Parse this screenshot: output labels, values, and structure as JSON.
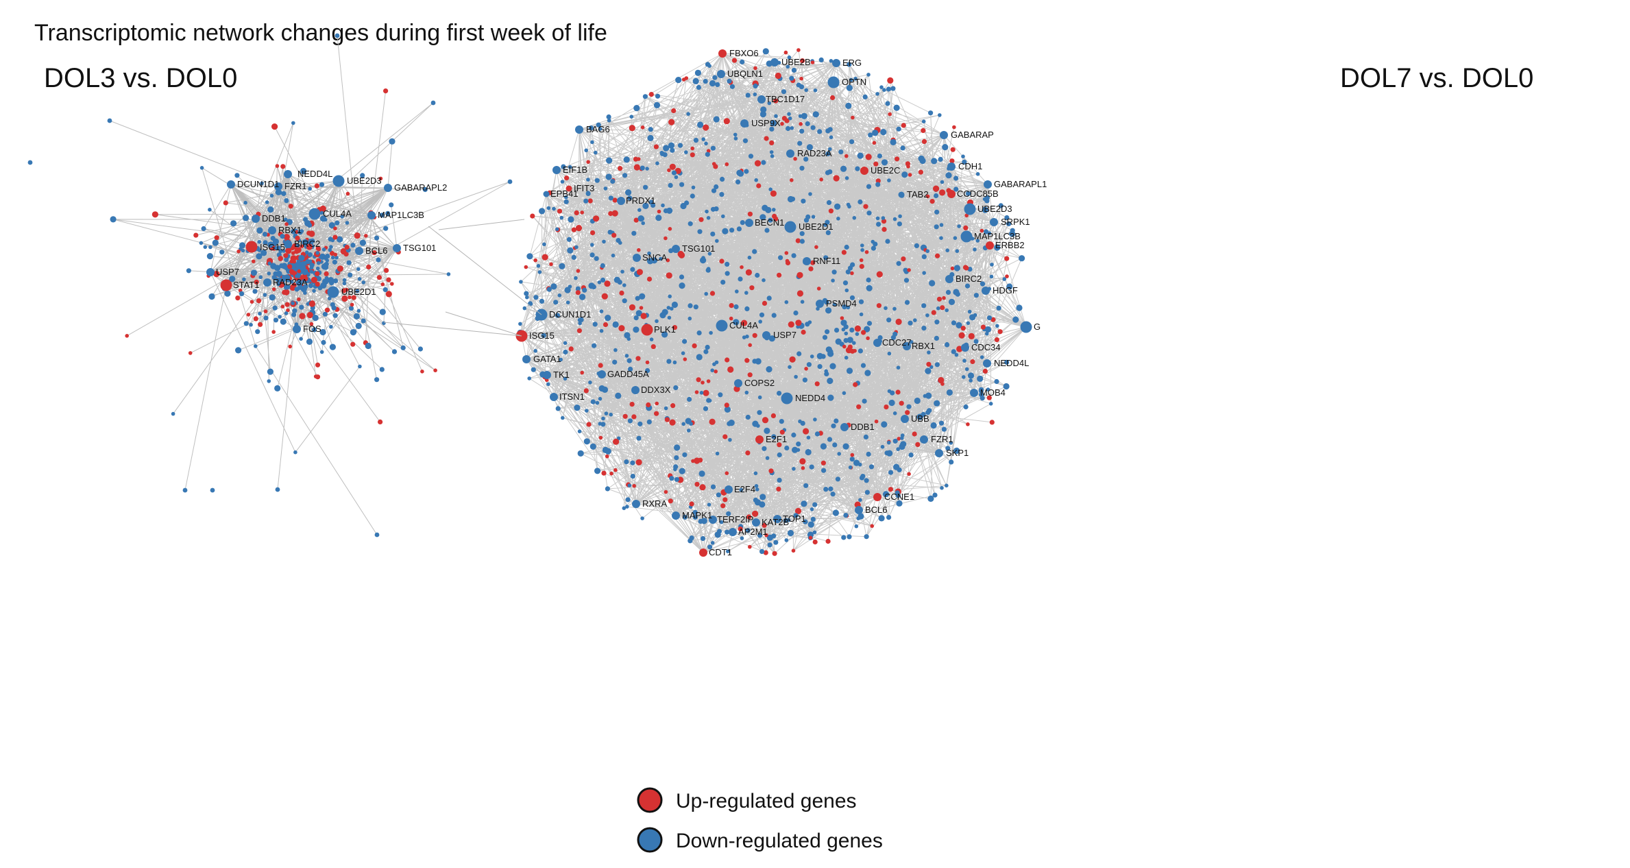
{
  "figure": {
    "title": "Transcriptomic network changes during first week of life"
  },
  "colors": {
    "up": "#d63232",
    "down": "#3878b4",
    "edge": "#b4b4b4",
    "legend_stroke": "#111111"
  },
  "legend": {
    "up_label": "Up-regulated genes",
    "down_label": "Down-regulated genes"
  },
  "networks": [
    {
      "id": "dol3",
      "title": "DOL3 vs. DOL0",
      "labeled_nodes": [
        {
          "label": "NEDD4L",
          "status": "down",
          "size": "medium"
        },
        {
          "label": "DCUN1D1",
          "status": "down",
          "size": "medium"
        },
        {
          "label": "FZR1",
          "status": "down",
          "size": "medium"
        },
        {
          "label": "UBE2D3",
          "status": "down",
          "size": "large"
        },
        {
          "label": "GABARAPL2",
          "status": "down",
          "size": "medium"
        },
        {
          "label": "CUL4A",
          "status": "down",
          "size": "large"
        },
        {
          "label": "DDB1",
          "status": "down",
          "size": "medium"
        },
        {
          "label": "MAP1LC3B",
          "status": "down",
          "size": "medium"
        },
        {
          "label": "RBX1",
          "status": "down",
          "size": "medium"
        },
        {
          "label": "ISG15",
          "status": "up",
          "size": "large"
        },
        {
          "label": "BIRC2",
          "status": "down",
          "size": "medium"
        },
        {
          "label": "BCL6",
          "status": "down",
          "size": "medium"
        },
        {
          "label": "TSG101",
          "status": "down",
          "size": "medium"
        },
        {
          "label": "USP7",
          "status": "down",
          "size": "medium"
        },
        {
          "label": "STAT1",
          "status": "up",
          "size": "large"
        },
        {
          "label": "RAD23A",
          "status": "down",
          "size": "medium"
        },
        {
          "label": "UBE2D1",
          "status": "down",
          "size": "large"
        },
        {
          "label": "FOS",
          "status": "down",
          "size": "medium"
        }
      ]
    },
    {
      "id": "dol7",
      "title": "DOL7 vs. DOL0",
      "labeled_nodes": [
        {
          "label": "FBXO6",
          "status": "up",
          "size": "medium"
        },
        {
          "label": "UBE2B",
          "status": "down",
          "size": "medium"
        },
        {
          "label": "ERG",
          "status": "down",
          "size": "medium"
        },
        {
          "label": "UBQLN1",
          "status": "down",
          "size": "medium"
        },
        {
          "label": "OPTN",
          "status": "down",
          "size": "large"
        },
        {
          "label": "TBC1D17",
          "status": "down",
          "size": "medium"
        },
        {
          "label": "USP9X",
          "status": "down",
          "size": "medium"
        },
        {
          "label": "BAG6",
          "status": "down",
          "size": "medium"
        },
        {
          "label": "GABARAP",
          "status": "down",
          "size": "medium"
        },
        {
          "label": "RAD23A",
          "status": "down",
          "size": "medium"
        },
        {
          "label": "EIF1B",
          "status": "down",
          "size": "medium"
        },
        {
          "label": "UBE2C",
          "status": "up",
          "size": "medium"
        },
        {
          "label": "CDH1",
          "status": "down",
          "size": "medium"
        },
        {
          "label": "IFIT3",
          "status": "up",
          "size": "small"
        },
        {
          "label": "GABARAPL1",
          "status": "down",
          "size": "medium"
        },
        {
          "label": "EPB41",
          "status": "down",
          "size": "small"
        },
        {
          "label": "TAB2",
          "status": "down",
          "size": "small"
        },
        {
          "label": "CCDC85B",
          "status": "up",
          "size": "medium"
        },
        {
          "label": "PRDX1",
          "status": "down",
          "size": "medium"
        },
        {
          "label": "UBE2D3",
          "status": "down",
          "size": "large"
        },
        {
          "label": "SRPK1",
          "status": "down",
          "size": "medium"
        },
        {
          "label": "BECN1",
          "status": "down",
          "size": "medium"
        },
        {
          "label": "UBE2D1",
          "status": "down",
          "size": "large"
        },
        {
          "label": "MAP1LC3B",
          "status": "down",
          "size": "large"
        },
        {
          "label": "ERBB2",
          "status": "up",
          "size": "medium"
        },
        {
          "label": "TSG101",
          "status": "down",
          "size": "medium"
        },
        {
          "label": "SNCA",
          "status": "down",
          "size": "medium"
        },
        {
          "label": "RNF11",
          "status": "down",
          "size": "medium"
        },
        {
          "label": "BIRC2",
          "status": "down",
          "size": "medium"
        },
        {
          "label": "HDGF",
          "status": "down",
          "size": "medium"
        },
        {
          "label": "PSMD4",
          "status": "down",
          "size": "medium"
        },
        {
          "label": "DCUN1D1",
          "status": "down",
          "size": "large"
        },
        {
          "label": "CUL4A",
          "status": "down",
          "size": "large"
        },
        {
          "label": "G",
          "status": "down",
          "size": "large"
        },
        {
          "label": "PLK1",
          "status": "up",
          "size": "large"
        },
        {
          "label": "ISG15",
          "status": "up",
          "size": "large"
        },
        {
          "label": "USP7",
          "status": "down",
          "size": "medium"
        },
        {
          "label": "CDC27",
          "status": "down",
          "size": "medium"
        },
        {
          "label": "RBX1",
          "status": "down",
          "size": "medium"
        },
        {
          "label": "CDC34",
          "status": "down",
          "size": "medium"
        },
        {
          "label": "GATA1",
          "status": "down",
          "size": "medium"
        },
        {
          "label": "NEDD4L",
          "status": "down",
          "size": "medium"
        },
        {
          "label": "TK1",
          "status": "down",
          "size": "medium"
        },
        {
          "label": "GADD45A",
          "status": "down",
          "size": "medium"
        },
        {
          "label": "COPS2",
          "status": "down",
          "size": "medium"
        },
        {
          "label": "DDX3X",
          "status": "down",
          "size": "medium"
        },
        {
          "label": "ITSN1",
          "status": "down",
          "size": "medium"
        },
        {
          "label": "MOB4",
          "status": "down",
          "size": "medium"
        },
        {
          "label": "NEDD4",
          "status": "down",
          "size": "large"
        },
        {
          "label": "UBB",
          "status": "down",
          "size": "medium"
        },
        {
          "label": "DDB1",
          "status": "down",
          "size": "medium"
        },
        {
          "label": "FZR1",
          "status": "down",
          "size": "medium"
        },
        {
          "label": "E2F1",
          "status": "up",
          "size": "medium"
        },
        {
          "label": "SKP1",
          "status": "down",
          "size": "medium"
        },
        {
          "label": "E2F4",
          "status": "down",
          "size": "medium"
        },
        {
          "label": "CCNE1",
          "status": "up",
          "size": "medium"
        },
        {
          "label": "RXRA",
          "status": "down",
          "size": "medium"
        },
        {
          "label": "BCL6",
          "status": "down",
          "size": "medium"
        },
        {
          "label": "MAPK1",
          "status": "down",
          "size": "medium"
        },
        {
          "label": "TERF2IP",
          "status": "down",
          "size": "medium"
        },
        {
          "label": "KAT2B",
          "status": "down",
          "size": "medium"
        },
        {
          "label": "TOP1",
          "status": "down",
          "size": "medium"
        },
        {
          "label": "AP2M1",
          "status": "down",
          "size": "medium"
        },
        {
          "label": "CDT1",
          "status": "up",
          "size": "medium"
        }
      ]
    }
  ]
}
